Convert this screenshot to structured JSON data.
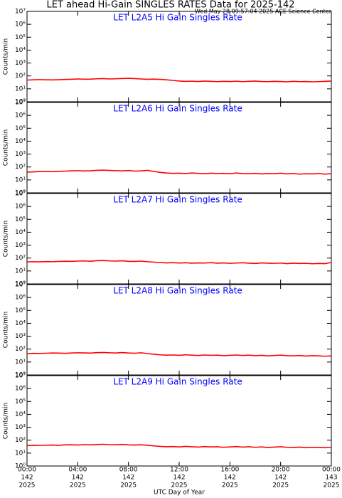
{
  "title": "LET ahead Hi-Gain SINGLES RATES Data for 2025-142",
  "subtitle": "Wed May 28 09:57:04 2025 ACE Science Center",
  "chart_data": [
    {
      "type": "line",
      "title": "LET L2A5 Hi Gain Singles Rate",
      "ylabel": "Counts/min",
      "log_y": true,
      "color": "#ff0000",
      "xlim": [
        0,
        24
      ],
      "xticks": [
        0,
        4,
        8,
        12,
        16,
        20,
        24
      ],
      "ylim": [
        1,
        10000000
      ],
      "yticks": [
        {
          "value": 1,
          "label": "10⁰"
        },
        {
          "value": 10,
          "label": "10¹"
        },
        {
          "value": 100,
          "label": "10²"
        },
        {
          "value": 1000,
          "label": "10³"
        },
        {
          "value": 10000,
          "label": "10⁴"
        },
        {
          "value": 100000,
          "label": "10⁵"
        },
        {
          "value": 1000000,
          "label": "10⁶"
        },
        {
          "value": 10000000,
          "label": "10⁷"
        }
      ],
      "x": [
        0,
        0.5,
        1,
        1.5,
        2,
        2.5,
        3,
        3.5,
        4,
        4.5,
        5,
        5.5,
        6,
        6.5,
        7,
        7.5,
        8,
        8.5,
        9,
        9.5,
        10,
        10.5,
        11,
        11.5,
        12,
        12.5,
        13,
        13.5,
        14,
        14.5,
        15,
        15.5,
        16,
        16.5,
        17,
        17.5,
        18,
        18.5,
        19,
        19.5,
        20,
        20.5,
        21,
        21.5,
        22,
        22.5,
        23,
        23.5,
        24
      ],
      "values": [
        48,
        50,
        52,
        50,
        49,
        51,
        53,
        55,
        58,
        56,
        57,
        60,
        62,
        58,
        60,
        63,
        65,
        62,
        58,
        55,
        57,
        54,
        50,
        45,
        40,
        38,
        39,
        37,
        40,
        38,
        36,
        38,
        37,
        39,
        36,
        38,
        40,
        37,
        36,
        38,
        37,
        35,
        38,
        36,
        37,
        35,
        36,
        38,
        40
      ]
    },
    {
      "type": "line",
      "title": "LET L2A6 Hi Gain Singles Rate",
      "ylabel": "Counts/min",
      "log_y": true,
      "color": "#ff0000",
      "xlim": [
        0,
        24
      ],
      "xticks": [
        0,
        4,
        8,
        12,
        16,
        20,
        24
      ],
      "ylim": [
        1,
        10000000
      ],
      "yticks": [
        {
          "value": 1,
          "label": "10⁰"
        },
        {
          "value": 10,
          "label": "10¹"
        },
        {
          "value": 100,
          "label": "10²"
        },
        {
          "value": 1000,
          "label": "10³"
        },
        {
          "value": 10000,
          "label": "10⁴"
        },
        {
          "value": 100000,
          "label": "10⁵"
        },
        {
          "value": 1000000,
          "label": "10⁶"
        },
        {
          "value": 10000000,
          "label": "10⁷"
        }
      ],
      "x": [
        0,
        0.5,
        1,
        1.5,
        2,
        2.5,
        3,
        3.5,
        4,
        4.5,
        5,
        5.5,
        6,
        6.5,
        7,
        7.5,
        8,
        8.5,
        9,
        9.5,
        10,
        10.5,
        11,
        11.5,
        12,
        12.5,
        13,
        13.5,
        14,
        14.5,
        15,
        15.5,
        16,
        16.5,
        17,
        17.5,
        18,
        18.5,
        19,
        19.5,
        20,
        20.5,
        21,
        21.5,
        22,
        22.5,
        23,
        23.5,
        24
      ],
      "values": [
        40,
        42,
        44,
        45,
        43,
        46,
        48,
        50,
        52,
        49,
        51,
        55,
        57,
        54,
        52,
        50,
        53,
        48,
        50,
        55,
        45,
        38,
        34,
        32,
        33,
        31,
        34,
        32,
        30,
        33,
        31,
        32,
        30,
        34,
        31,
        30,
        32,
        29,
        31,
        30,
        33,
        29,
        31,
        28,
        30,
        29,
        31,
        28,
        30
      ]
    },
    {
      "type": "line",
      "title": "LET L2A7 Hi Gain Singles Rate",
      "ylabel": "Counts/min",
      "log_y": true,
      "color": "#ff0000",
      "xlim": [
        0,
        24
      ],
      "xticks": [
        0,
        4,
        8,
        12,
        16,
        20,
        24
      ],
      "ylim": [
        1,
        10000000
      ],
      "yticks": [
        {
          "value": 1,
          "label": "10⁰"
        },
        {
          "value": 10,
          "label": "10¹"
        },
        {
          "value": 100,
          "label": "10²"
        },
        {
          "value": 1000,
          "label": "10³"
        },
        {
          "value": 10000,
          "label": "10⁴"
        },
        {
          "value": 100000,
          "label": "10⁵"
        },
        {
          "value": 1000000,
          "label": "10⁶"
        },
        {
          "value": 10000000,
          "label": "10⁷"
        }
      ],
      "x": [
        0,
        0.5,
        1,
        1.5,
        2,
        2.5,
        3,
        3.5,
        4,
        4.5,
        5,
        5.5,
        6,
        6.5,
        7,
        7.5,
        8,
        8.5,
        9,
        9.5,
        10,
        10.5,
        11,
        11.5,
        12,
        12.5,
        13,
        13.5,
        14,
        14.5,
        15,
        15.5,
        16,
        16.5,
        17,
        17.5,
        18,
        18.5,
        19,
        19.5,
        20,
        20.5,
        21,
        21.5,
        22,
        22.5,
        23,
        23.5,
        24
      ],
      "values": [
        50,
        52,
        51,
        53,
        52,
        55,
        57,
        56,
        58,
        60,
        57,
        62,
        64,
        60,
        58,
        61,
        56,
        55,
        58,
        52,
        48,
        45,
        42,
        44,
        41,
        43,
        40,
        42,
        41,
        44,
        40,
        42,
        39,
        41,
        43,
        40,
        38,
        42,
        40,
        39,
        41,
        37,
        40,
        38,
        39,
        36,
        38,
        37,
        45
      ]
    },
    {
      "type": "line",
      "title": "LET L2A8 Hi Gain Singles Rate",
      "ylabel": "Counts/min",
      "log_y": true,
      "color": "#ff0000",
      "xlim": [
        0,
        24
      ],
      "xticks": [
        0,
        4,
        8,
        12,
        16,
        20,
        24
      ],
      "ylim": [
        1,
        10000000
      ],
      "yticks": [
        {
          "value": 1,
          "label": "10⁰"
        },
        {
          "value": 10,
          "label": "10¹"
        },
        {
          "value": 100,
          "label": "10²"
        },
        {
          "value": 1000,
          "label": "10³"
        },
        {
          "value": 10000,
          "label": "10⁴"
        },
        {
          "value": 100000,
          "label": "10⁵"
        },
        {
          "value": 1000000,
          "label": "10⁶"
        },
        {
          "value": 10000000,
          "label": "10⁷"
        }
      ],
      "x": [
        0,
        0.5,
        1,
        1.5,
        2,
        2.5,
        3,
        3.5,
        4,
        4.5,
        5,
        5.5,
        6,
        6.5,
        7,
        7.5,
        8,
        8.5,
        9,
        9.5,
        10,
        10.5,
        11,
        11.5,
        12,
        12.5,
        13,
        13.5,
        14,
        14.5,
        15,
        15.5,
        16,
        16.5,
        17,
        17.5,
        18,
        18.5,
        19,
        19.5,
        20,
        20.5,
        21,
        21.5,
        22,
        22.5,
        23,
        23.5,
        24
      ],
      "values": [
        45,
        47,
        46,
        48,
        50,
        49,
        47,
        50,
        52,
        51,
        49,
        53,
        55,
        52,
        50,
        54,
        50,
        48,
        52,
        45,
        40,
        36,
        34,
        35,
        33,
        36,
        34,
        32,
        35,
        33,
        34,
        31,
        33,
        35,
        32,
        34,
        31,
        33,
        30,
        32,
        34,
        31,
        30,
        32,
        29,
        31,
        30,
        28,
        30
      ]
    },
    {
      "type": "line",
      "title": "LET L2A9 Hi Gain Singles Rate",
      "ylabel": "Counts/min",
      "xlabel": "UTC Day of Year",
      "log_y": true,
      "color": "#ff0000",
      "xlim": [
        0,
        24
      ],
      "xticks": [
        {
          "value": 0,
          "label": "00:00"
        },
        {
          "value": 4,
          "label": "04:00"
        },
        {
          "value": 8,
          "label": "08:00"
        },
        {
          "value": 12,
          "label": "12:00"
        },
        {
          "value": 16,
          "label": "16:00"
        },
        {
          "value": 20,
          "label": "20:00"
        },
        {
          "value": 24,
          "label": "00:00"
        }
      ],
      "xtick_sublabels": [
        [
          "142",
          "2025"
        ],
        [
          "142",
          "2025"
        ],
        [
          "142",
          "2025"
        ],
        [
          "142",
          "2025"
        ],
        [
          "142",
          "2025"
        ],
        [
          "142",
          "2025"
        ],
        [
          "143",
          "2025"
        ]
      ],
      "ylim": [
        1,
        10000000
      ],
      "yticks": [
        {
          "value": 1,
          "label": "10⁰"
        },
        {
          "value": 10,
          "label": "10¹"
        },
        {
          "value": 100,
          "label": "10²"
        },
        {
          "value": 1000,
          "label": "10³"
        },
        {
          "value": 10000,
          "label": "10⁴"
        },
        {
          "value": 100000,
          "label": "10⁵"
        },
        {
          "value": 1000000,
          "label": "10⁶"
        },
        {
          "value": 10000000,
          "label": "10⁷"
        }
      ],
      "x": [
        0,
        0.5,
        1,
        1.5,
        2,
        2.5,
        3,
        3.5,
        4,
        4.5,
        5,
        5.5,
        6,
        6.5,
        7,
        7.5,
        8,
        8.5,
        9,
        9.5,
        10,
        10.5,
        11,
        11.5,
        12,
        12.5,
        13,
        13.5,
        14,
        14.5,
        15,
        15.5,
        16,
        16.5,
        17,
        17.5,
        18,
        18.5,
        19,
        19.5,
        20,
        20.5,
        21,
        21.5,
        22,
        22.5,
        23,
        23.5,
        24
      ],
      "values": [
        38,
        40,
        39,
        41,
        42,
        40,
        43,
        44,
        42,
        45,
        43,
        46,
        48,
        45,
        44,
        47,
        43,
        42,
        44,
        40,
        36,
        33,
        31,
        32,
        30,
        33,
        31,
        29,
        32,
        30,
        31,
        28,
        30,
        32,
        29,
        31,
        28,
        30,
        27,
        29,
        31,
        28,
        27,
        29,
        26,
        28,
        27,
        26,
        28
      ]
    }
  ]
}
